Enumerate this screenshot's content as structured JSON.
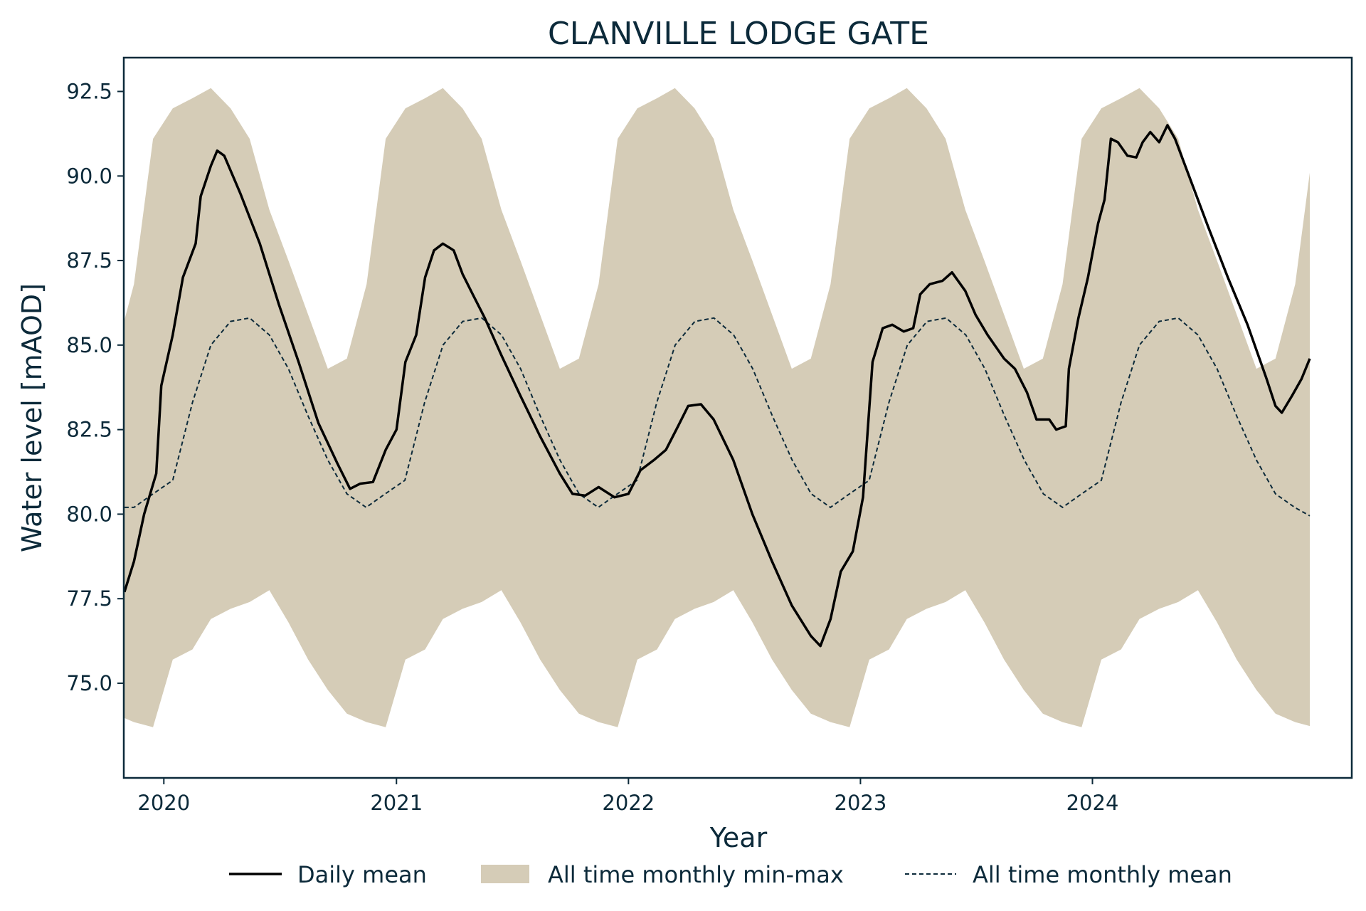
{
  "chart_data": {
    "type": "line",
    "title": "CLANVILLE LODGE GATE",
    "xlabel": "Year",
    "ylabel": "Water level [mAOD]",
    "xlim": [
      "2019-10-30",
      "2025-02-12"
    ],
    "ylim": [
      72.2,
      93.5
    ],
    "x_ticks": [
      "2020",
      "2021",
      "2022",
      "2023",
      "2024"
    ],
    "y_ticks": [
      "75.0",
      "77.5",
      "80.0",
      "82.5",
      "85.0",
      "87.5",
      "90.0",
      "92.5"
    ],
    "grid": false,
    "legend_position": "bottom",
    "legend": [
      "Daily mean",
      "All time monthly min-max",
      "All time monthly mean"
    ],
    "colors": {
      "daily_mean": "#000000",
      "min_max_fill": "#d5ccb7",
      "monthly_mean": "#0c2a3a",
      "axes": "#0c2a3a"
    },
    "series": [
      {
        "name": "Daily mean",
        "style": "solid",
        "points": [
          [
            "2019-10-31",
            77.7
          ],
          [
            "2019-11-15",
            78.6
          ],
          [
            "2019-12-01",
            80.0
          ],
          [
            "2019-12-20",
            81.2
          ],
          [
            "2019-12-28",
            83.8
          ],
          [
            "2020-01-15",
            85.3
          ],
          [
            "2020-01-31",
            87.0
          ],
          [
            "2020-02-20",
            88.0
          ],
          [
            "2020-02-28",
            89.4
          ],
          [
            "2020-03-15",
            90.3
          ],
          [
            "2020-03-25",
            90.75
          ],
          [
            "2020-04-05",
            90.6
          ],
          [
            "2020-04-30",
            89.5
          ],
          [
            "2020-05-31",
            88.0
          ],
          [
            "2020-06-30",
            86.2
          ],
          [
            "2020-07-31",
            84.5
          ],
          [
            "2020-08-31",
            82.7
          ],
          [
            "2020-09-30",
            81.5
          ],
          [
            "2020-10-20",
            80.75
          ],
          [
            "2020-11-05",
            80.9
          ],
          [
            "2020-11-25",
            80.95
          ],
          [
            "2020-12-15",
            81.9
          ],
          [
            "2021-01-01",
            82.5
          ],
          [
            "2021-01-15",
            84.5
          ],
          [
            "2021-02-01",
            85.3
          ],
          [
            "2021-02-15",
            87.0
          ],
          [
            "2021-03-01",
            87.8
          ],
          [
            "2021-03-15",
            88.0
          ],
          [
            "2021-04-01",
            87.8
          ],
          [
            "2021-04-15",
            87.1
          ],
          [
            "2021-05-01",
            86.5
          ],
          [
            "2021-05-20",
            85.8
          ],
          [
            "2021-06-15",
            84.7
          ],
          [
            "2021-07-15",
            83.5
          ],
          [
            "2021-08-15",
            82.3
          ],
          [
            "2021-09-15",
            81.2
          ],
          [
            "2021-10-05",
            80.6
          ],
          [
            "2021-10-25",
            80.55
          ],
          [
            "2021-11-15",
            80.8
          ],
          [
            "2021-12-10",
            80.5
          ],
          [
            "2022-01-01",
            80.6
          ],
          [
            "2022-01-20",
            81.3
          ],
          [
            "2022-02-10",
            81.6
          ],
          [
            "2022-03-01",
            81.9
          ],
          [
            "2022-03-20",
            82.6
          ],
          [
            "2022-04-05",
            83.2
          ],
          [
            "2022-04-25",
            83.25
          ],
          [
            "2022-05-15",
            82.8
          ],
          [
            "2022-06-15",
            81.6
          ],
          [
            "2022-07-15",
            80.0
          ],
          [
            "2022-08-15",
            78.6
          ],
          [
            "2022-09-15",
            77.3
          ],
          [
            "2022-10-15",
            76.4
          ],
          [
            "2022-10-30",
            76.1
          ],
          [
            "2022-11-15",
            76.9
          ],
          [
            "2022-12-01",
            78.3
          ],
          [
            "2022-12-20",
            78.9
          ],
          [
            "2023-01-05",
            80.5
          ],
          [
            "2023-01-20",
            84.5
          ],
          [
            "2023-02-05",
            85.5
          ],
          [
            "2023-02-20",
            85.6
          ],
          [
            "2023-03-10",
            85.4
          ],
          [
            "2023-03-25",
            85.5
          ],
          [
            "2023-04-05",
            86.5
          ],
          [
            "2023-04-20",
            86.8
          ],
          [
            "2023-05-10",
            86.9
          ],
          [
            "2023-05-25",
            87.15
          ],
          [
            "2023-06-15",
            86.6
          ],
          [
            "2023-07-01",
            85.9
          ],
          [
            "2023-07-20",
            85.3
          ],
          [
            "2023-08-15",
            84.6
          ],
          [
            "2023-09-01",
            84.3
          ],
          [
            "2023-09-20",
            83.6
          ],
          [
            "2023-10-05",
            82.8
          ],
          [
            "2023-10-25",
            82.8
          ],
          [
            "2023-11-05",
            82.5
          ],
          [
            "2023-11-20",
            82.6
          ],
          [
            "2023-11-25",
            84.3
          ],
          [
            "2023-12-10",
            85.8
          ],
          [
            "2023-12-25",
            87.0
          ],
          [
            "2024-01-10",
            88.6
          ],
          [
            "2024-01-20",
            89.3
          ],
          [
            "2024-01-30",
            91.1
          ],
          [
            "2024-02-10",
            91.0
          ],
          [
            "2024-02-25",
            90.6
          ],
          [
            "2024-03-10",
            90.55
          ],
          [
            "2024-03-20",
            91.0
          ],
          [
            "2024-04-01",
            91.3
          ],
          [
            "2024-04-15",
            91.0
          ],
          [
            "2024-04-28",
            91.5
          ],
          [
            "2024-05-10",
            91.1
          ],
          [
            "2024-06-01",
            90.0
          ],
          [
            "2024-07-01",
            88.5
          ],
          [
            "2024-08-01",
            87.0
          ],
          [
            "2024-09-01",
            85.6
          ],
          [
            "2024-10-01",
            84.0
          ],
          [
            "2024-10-15",
            83.2
          ],
          [
            "2024-10-25",
            83.0
          ],
          [
            "2024-11-10",
            83.5
          ],
          [
            "2024-11-25",
            84.0
          ],
          [
            "2024-12-08",
            84.6
          ]
        ]
      },
      {
        "name": "All time monthly mean",
        "style": "dashed",
        "monthly_values": [
          80.2,
          80.6,
          81.0,
          83.3,
          85.0,
          85.7,
          85.8,
          85.3,
          84.3,
          82.9,
          81.6,
          80.6,
          79.95,
          79.95
        ],
        "months": [
          "2019-11-15",
          "2019-12-15",
          "2020-01-15",
          "2020-02-15",
          "2020-03-15",
          "2020-04-15",
          "2020-05-15",
          "2020-06-15",
          "2020-07-15",
          "2020-08-15",
          "2020-09-15",
          "2020-10-15",
          "2020-11-15",
          "2020-12-15"
        ],
        "repeats_yearly_until": "2024-12-08"
      },
      {
        "name": "All time monthly min-max",
        "style": "fill",
        "monthly_max": [
          86.8,
          91.1,
          92.0,
          92.3,
          92.6,
          92.0,
          91.1,
          89.0,
          87.5,
          85.9,
          84.3,
          84.6
        ],
        "monthly_min": [
          73.85,
          73.7,
          75.7,
          76.0,
          76.9,
          77.2,
          77.4,
          77.75,
          76.8,
          75.7,
          74.8,
          74.1
        ],
        "month_numbers": [
          11,
          12,
          1,
          2,
          3,
          4,
          5,
          6,
          7,
          8,
          9,
          10
        ],
        "range": [
          "2019-10-31",
          "2024-12-08"
        ]
      }
    ]
  }
}
